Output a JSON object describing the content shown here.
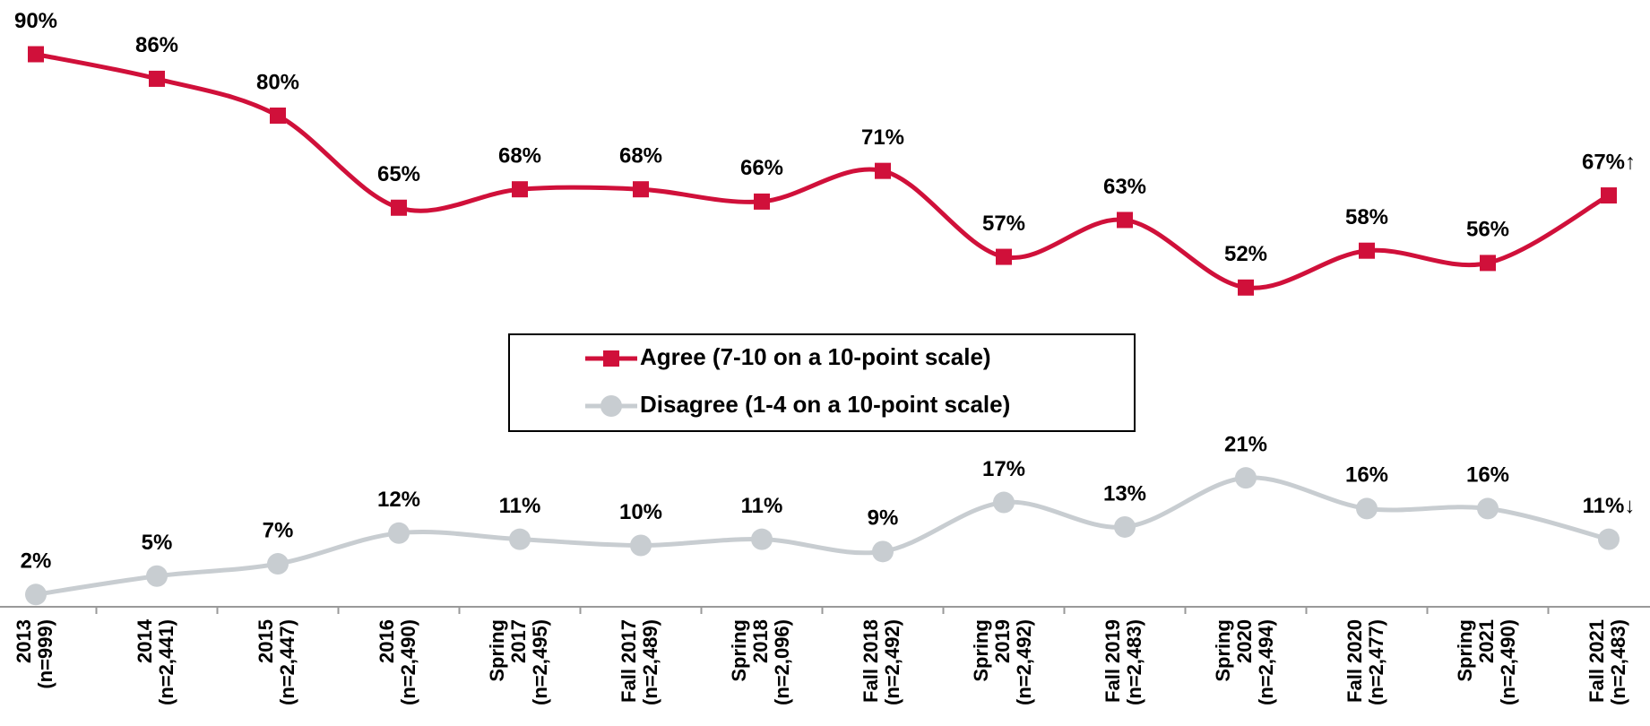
{
  "chart_data": {
    "type": "line",
    "categories": [
      [
        "2013",
        "(n=999)"
      ],
      [
        "2014",
        "(n=2,441)"
      ],
      [
        "2015",
        "(n=2,447)"
      ],
      [
        "2016",
        "(n=2,490)"
      ],
      [
        "Spring",
        "2017",
        "(n=2,495)"
      ],
      [
        "Fall 2017",
        "(n=2,489)"
      ],
      [
        "Spring",
        "2018",
        "(n=2,096)"
      ],
      [
        "Fall 2018",
        "(n=2,492)"
      ],
      [
        "Spring",
        "2019",
        "(n=2,492)"
      ],
      [
        "Fall 2019",
        "(n=2,483)"
      ],
      [
        "Spring",
        "2020",
        "(n=2,494)"
      ],
      [
        "Fall 2020",
        "(n=2,477)"
      ],
      [
        "Spring",
        "2021",
        "(n=2,490)"
      ],
      [
        "Fall 2021",
        "(n=2,483)"
      ]
    ],
    "series": [
      {
        "name": "Agree (7-10 on a 10-point scale)",
        "color": "#d0103a",
        "marker": "square",
        "values": [
          90,
          86,
          80,
          65,
          68,
          68,
          66,
          71,
          57,
          63,
          52,
          58,
          56,
          67
        ],
        "value_labels": [
          "90%",
          "86%",
          "80%",
          "65%",
          "68%",
          "68%",
          "66%",
          "71%",
          "57%",
          "63%",
          "52%",
          "58%",
          "56%",
          "67%↑"
        ]
      },
      {
        "name": "Disagree (1-4 on a 10-point scale)",
        "color": "#c8cdd1",
        "marker": "circle",
        "values": [
          2,
          5,
          7,
          12,
          11,
          10,
          11,
          9,
          17,
          13,
          21,
          16,
          16,
          11
        ],
        "value_labels": [
          "2%",
          "5%",
          "7%",
          "12%",
          "11%",
          "10%",
          "11%",
          "9%",
          "17%",
          "13%",
          "21%",
          "16%",
          "16%",
          "11%↓"
        ]
      }
    ],
    "ylim": [
      0,
      100
    ],
    "smooth": true,
    "legend": "center"
  }
}
